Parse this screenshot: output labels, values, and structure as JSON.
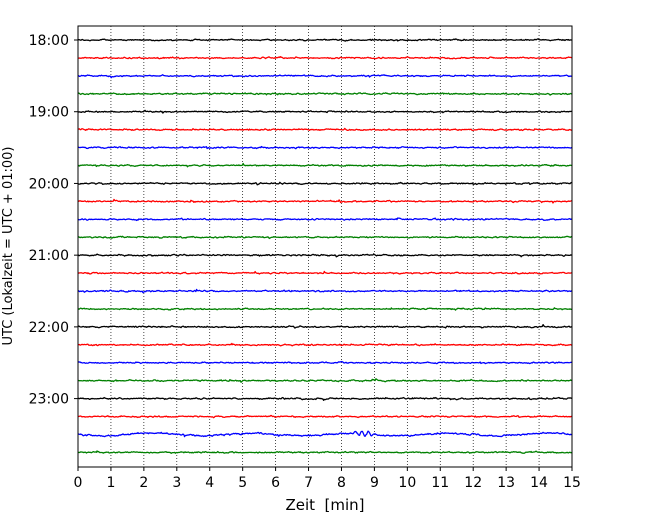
{
  "chart_data": {
    "type": "line",
    "xlabel": "Zeit  [min]",
    "ylabel": "UTC (Lokalzeit = UTC + 01:00)",
    "xlim": [
      0,
      15
    ],
    "x_ticks": [
      0,
      1,
      2,
      3,
      4,
      5,
      6,
      7,
      8,
      9,
      10,
      11,
      12,
      13,
      14,
      15
    ],
    "x_tick_labels": [
      "0",
      "1",
      "2",
      "3",
      "4",
      "5",
      "6",
      "7",
      "8",
      "9",
      "10",
      "11",
      "12",
      "13",
      "14",
      "15"
    ],
    "y_ticks": [
      {
        "label": "18:00",
        "row": 0
      },
      {
        "label": "19:00",
        "row": 4
      },
      {
        "label": "20:00",
        "row": 8
      },
      {
        "label": "21:00",
        "row": 12
      },
      {
        "label": "22:00",
        "row": 16
      },
      {
        "label": "23:00",
        "row": 20
      }
    ],
    "grid": {
      "x": "dotted",
      "y": false
    },
    "color_cycle": [
      "#000000",
      "#ff0000",
      "#0000ff",
      "#008000"
    ],
    "traces": [
      {
        "start": "18:00",
        "color": "#000000",
        "level": "quiet"
      },
      {
        "start": "18:15",
        "color": "#ff0000",
        "level": "quiet"
      },
      {
        "start": "18:30",
        "color": "#0000ff",
        "level": "quiet"
      },
      {
        "start": "18:45",
        "color": "#008000",
        "level": "quiet"
      },
      {
        "start": "19:00",
        "color": "#000000",
        "level": "quiet"
      },
      {
        "start": "19:15",
        "color": "#ff0000",
        "level": "quiet"
      },
      {
        "start": "19:30",
        "color": "#0000ff",
        "level": "quiet"
      },
      {
        "start": "19:45",
        "color": "#008000",
        "level": "quiet"
      },
      {
        "start": "20:00",
        "color": "#000000",
        "level": "quiet"
      },
      {
        "start": "20:15",
        "color": "#ff0000",
        "level": "quiet"
      },
      {
        "start": "20:30",
        "color": "#0000ff",
        "level": "quiet"
      },
      {
        "start": "20:45",
        "color": "#008000",
        "level": "quiet"
      },
      {
        "start": "21:00",
        "color": "#000000",
        "level": "quiet"
      },
      {
        "start": "21:15",
        "color": "#ff0000",
        "level": "quiet"
      },
      {
        "start": "21:30",
        "color": "#0000ff",
        "level": "quiet"
      },
      {
        "start": "21:45",
        "color": "#008000",
        "level": "quiet"
      },
      {
        "start": "22:00",
        "color": "#000000",
        "level": "quiet"
      },
      {
        "start": "22:15",
        "color": "#ff0000",
        "level": "quiet"
      },
      {
        "start": "22:30",
        "color": "#0000ff",
        "level": "quiet"
      },
      {
        "start": "22:45",
        "color": "#008000",
        "level": "quiet"
      },
      {
        "start": "23:00",
        "color": "#000000",
        "level": "quiet"
      },
      {
        "start": "23:15",
        "color": "#ff0000",
        "level": "quiet"
      },
      {
        "start": "23:30",
        "color": "#0000ff",
        "level": "event",
        "event_minute": 8.7
      },
      {
        "start": "23:45",
        "color": "#008000",
        "level": "quiet"
      }
    ]
  }
}
